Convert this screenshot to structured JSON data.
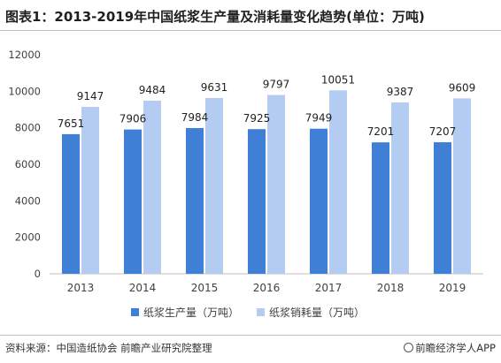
{
  "header": {
    "title": "图表1：2013-2019年中国纸浆生产量及消耗量变化趋势(单位：万吨)"
  },
  "footer": {
    "source": "资料来源：中国造纸协会 前瞻产业研究院整理",
    "brand": "前瞻经济学人APP"
  },
  "colors": {
    "production": "#3f7fd6",
    "consumption": "#b4ccf1",
    "axis": "#bfbfbf",
    "text": "#404040"
  },
  "chart_data": {
    "type": "bar",
    "title": "图表1：2013-2019年中国纸浆生产量及消耗量变化趋势(单位：万吨)",
    "categories": [
      "2013",
      "2014",
      "2015",
      "2016",
      "2017",
      "2018",
      "2019"
    ],
    "series": [
      {
        "name": "纸浆生产量（万吨）",
        "values": [
          7651,
          7906,
          7984,
          7925,
          7949,
          7201,
          7207
        ]
      },
      {
        "name": "纸浆销耗量（万吨）",
        "values": [
          9147,
          9484,
          9631,
          9797,
          10051,
          9387,
          9609
        ]
      }
    ],
    "ylim": [
      0,
      12000
    ],
    "yticks": [
      0,
      2000,
      4000,
      6000,
      8000,
      10000,
      12000
    ],
    "grid": false,
    "legend": "bottom",
    "data_labels": true
  }
}
